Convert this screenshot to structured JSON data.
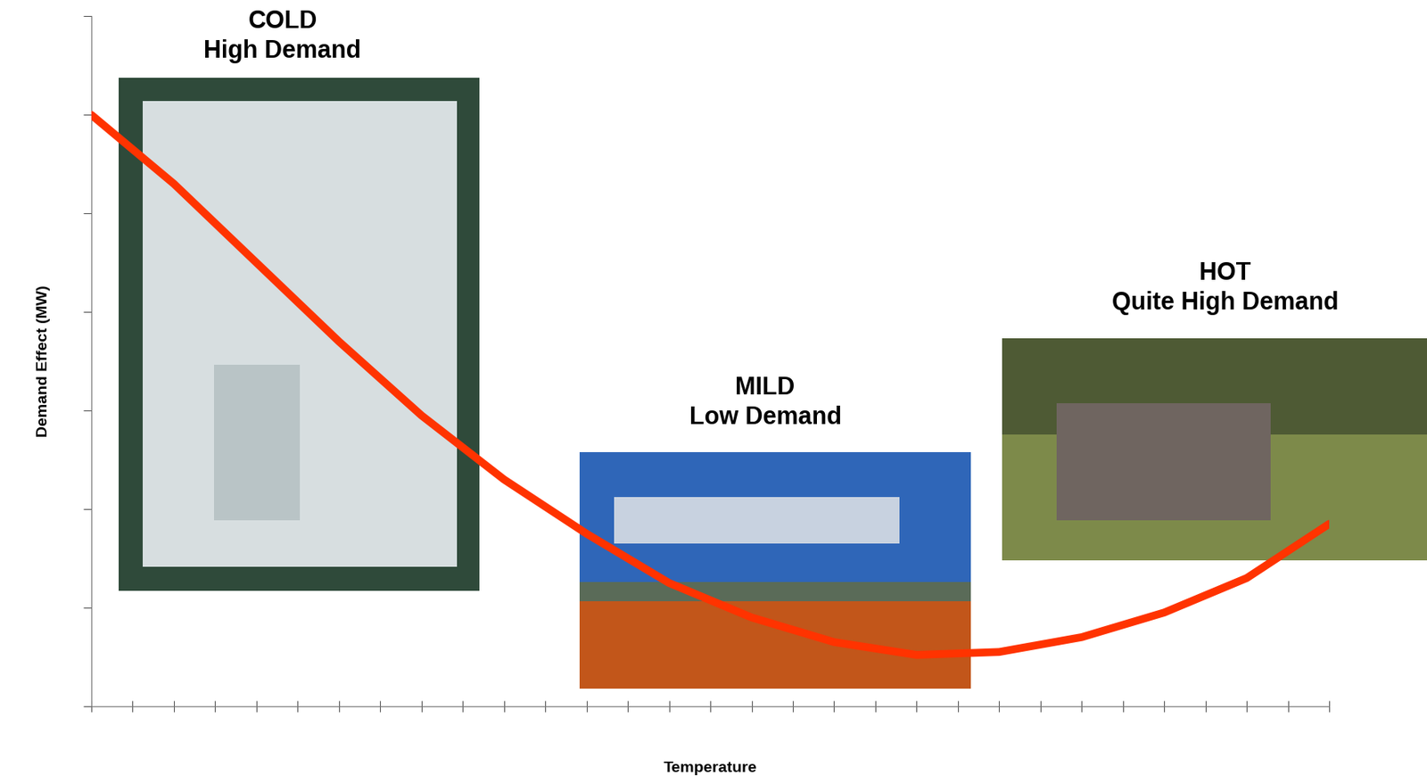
{
  "chart_data": {
    "type": "line",
    "x_label": "Temperature",
    "y_label": "Demand Effect (MW)",
    "annotations": [
      "COLD\nHigh Demand",
      "MILD\nLow Demand",
      "HOT\nQuite High Demand"
    ],
    "x": [
      0,
      2,
      4,
      6,
      8,
      10,
      12,
      14,
      16,
      18,
      20,
      22,
      24,
      26,
      28,
      30
    ],
    "values": [
      6.0,
      5.3,
      4.5,
      3.7,
      2.95,
      2.3,
      1.75,
      1.25,
      0.9,
      0.65,
      0.52,
      0.55,
      0.7,
      0.95,
      1.3,
      1.85
    ],
    "color": "#ff3300",
    "xlim": [
      0,
      30
    ],
    "xticks": [
      0,
      1,
      2,
      3,
      4,
      5,
      6,
      7,
      8,
      9,
      10,
      11,
      12,
      13,
      14,
      15,
      16,
      17,
      18,
      19,
      20,
      21,
      22,
      23,
      24,
      25,
      26,
      27,
      28,
      29,
      30
    ],
    "ylim": [
      0,
      7
    ],
    "yticks": [
      0,
      1,
      2,
      3,
      4,
      5,
      6,
      7
    ],
    "tick_labels": false,
    "grid": false
  }
}
